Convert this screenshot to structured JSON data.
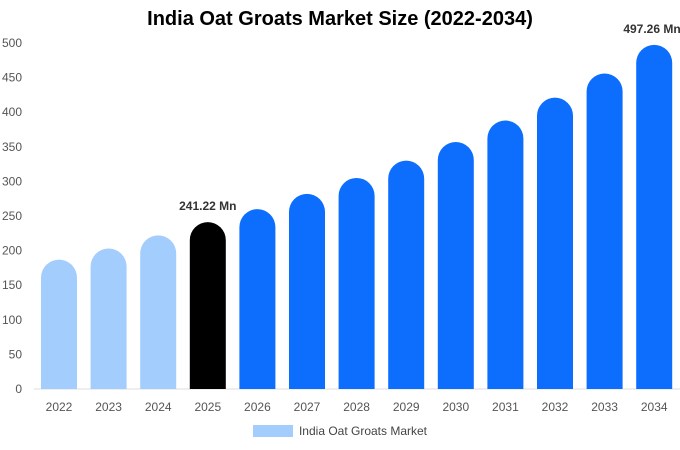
{
  "chart_data": {
    "type": "bar",
    "title": "India Oat Groats Market Size (2022-2034)",
    "categories": [
      "2022",
      "2023",
      "2024",
      "2025",
      "2026",
      "2027",
      "2028",
      "2029",
      "2030",
      "2031",
      "2032",
      "2033",
      "2034"
    ],
    "series": [
      {
        "name": "India Oat Groats Market",
        "values": [
          187,
          203,
          222,
          241.22,
          260,
          282,
          305,
          330,
          357,
          388,
          421,
          456,
          497.26
        ]
      }
    ],
    "bar_colors": [
      "#a3cdfd",
      "#a3cdfd",
      "#a3cdfd",
      "#000000",
      "#0d6efd",
      "#0d6efd",
      "#0d6efd",
      "#0d6efd",
      "#0d6efd",
      "#0d6efd",
      "#0d6efd",
      "#0d6efd",
      "#0d6efd"
    ],
    "data_labels": [
      {
        "category": "2025",
        "text": "241.22 Mn"
      },
      {
        "category": "2034",
        "text": "497.26 Mn"
      }
    ],
    "yticks": [
      0,
      50,
      100,
      150,
      200,
      250,
      300,
      350,
      400,
      450,
      500
    ],
    "ylim": [
      0,
      500
    ],
    "xlabel": "",
    "ylabel": "",
    "grid": false,
    "legend_position": "bottom",
    "legend_color": "#a3cdfd"
  }
}
